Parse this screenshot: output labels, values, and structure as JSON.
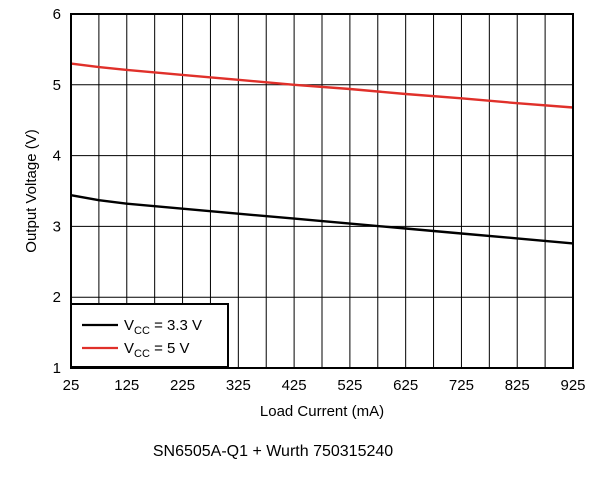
{
  "chart_data": {
    "type": "line",
    "title": "",
    "caption": "SN6505A-Q1 + Wurth 750315240",
    "xlabel": "Load Current (mA)",
    "ylabel": "Output Voltage (V)",
    "xlim": [
      25,
      925
    ],
    "ylim": [
      1,
      6
    ],
    "x_ticks": [
      "25",
      "125",
      "225",
      "325",
      "425",
      "525",
      "625",
      "725",
      "825",
      "925"
    ],
    "y_ticks": [
      "1",
      "2",
      "3",
      "4",
      "5",
      "6"
    ],
    "grid": true,
    "legend_position": "bottom-left",
    "series": [
      {
        "name_main": "V",
        "name_sub": "CC",
        "name_rest": " = 3.3 V",
        "color": "#000000",
        "x": [
          25,
          75,
          125,
          225,
          325,
          425,
          525,
          625,
          725,
          825,
          925
        ],
        "y": [
          3.44,
          3.37,
          3.32,
          3.25,
          3.18,
          3.11,
          3.04,
          2.97,
          2.9,
          2.83,
          2.76
        ]
      },
      {
        "name_main": "V",
        "name_sub": "CC",
        "name_rest": " = 5 V",
        "color": "#e0302a",
        "x": [
          25,
          75,
          125,
          225,
          325,
          425,
          525,
          625,
          725,
          825,
          925
        ],
        "y": [
          5.3,
          5.25,
          5.21,
          5.14,
          5.07,
          5.0,
          4.94,
          4.87,
          4.81,
          4.74,
          4.68
        ]
      }
    ]
  }
}
